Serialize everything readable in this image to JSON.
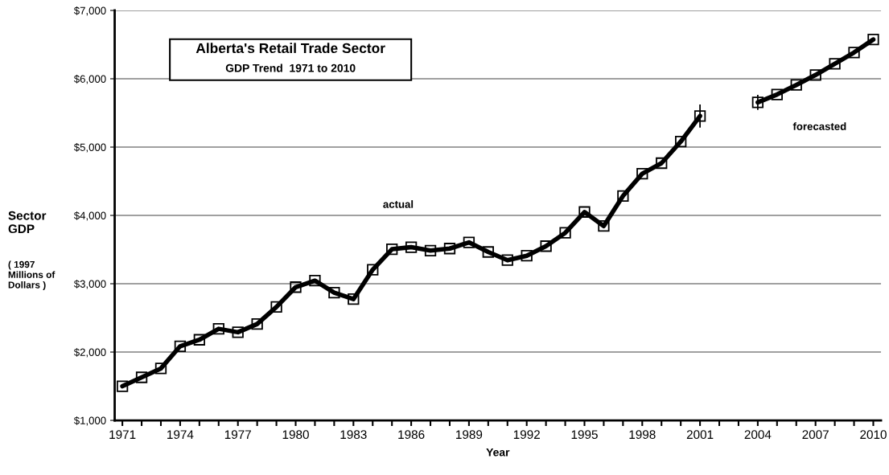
{
  "chart_data": {
    "type": "line",
    "title": "Alberta's Retail Trade Sector",
    "subtitle": "GDP Trend  1971 to 2010",
    "xlabel": "Year",
    "ylabel": "Sector\nGDP",
    "annotations": [
      "( 1997\nMillions of\nDollars )",
      "actual",
      "forecasted"
    ],
    "categories": [
      "1971",
      null,
      null,
      "1974",
      null,
      null,
      "1977",
      null,
      null,
      "1980",
      null,
      null,
      "1983",
      null,
      null,
      "1986",
      null,
      null,
      "1989",
      null,
      null,
      "1992",
      null,
      null,
      "1995",
      null,
      null,
      "1998",
      null,
      null,
      "2001",
      null,
      null,
      "2004",
      null,
      null,
      "2007",
      null,
      null,
      "2010"
    ],
    "series": [
      {
        "color": "#000000",
        "values": [
          1500,
          1630,
          1760,
          2085,
          2180,
          2340,
          2290,
          2410,
          2660,
          2950,
          3045,
          2870,
          2775,
          3205,
          3505,
          3535,
          3485,
          3515,
          3605,
          3465,
          3345,
          3410,
          3550,
          3745,
          4050,
          3845,
          4285,
          4610,
          4765,
          5080,
          5455,
          null,
          null,
          null,
          null,
          null,
          null,
          null,
          null,
          null
        ],
        "errors": [
          null,
          null,
          null,
          null,
          null,
          null,
          null,
          null,
          null,
          null,
          null,
          null,
          null,
          null,
          null,
          null,
          null,
          null,
          null,
          null,
          null,
          null,
          null,
          null,
          null,
          null,
          null,
          null,
          null,
          null,
          170,
          null,
          null,
          null,
          null,
          null,
          null,
          null,
          null,
          null
        ]
      },
      {
        "color": "#000000",
        "values": [
          null,
          null,
          null,
          null,
          null,
          null,
          null,
          null,
          null,
          null,
          null,
          null,
          null,
          null,
          null,
          null,
          null,
          null,
          null,
          null,
          null,
          null,
          null,
          null,
          null,
          null,
          null,
          null,
          null,
          null,
          null,
          null,
          null,
          5655,
          5770,
          5910,
          6055,
          6220,
          6385,
          6575
        ],
        "errors": [
          null,
          null,
          null,
          null,
          null,
          null,
          null,
          null,
          null,
          null,
          null,
          null,
          null,
          null,
          null,
          null,
          null,
          null,
          null,
          null,
          null,
          null,
          null,
          null,
          null,
          null,
          null,
          null,
          null,
          null,
          null,
          null,
          null,
          110,
          null,
          null,
          null,
          null,
          null,
          null
        ]
      }
    ],
    "ylim": [
      1000,
      7000
    ],
    "yticks": [
      {
        "value": 1000,
        "label": "$1,000"
      },
      {
        "value": 2000,
        "label": "$2,000"
      },
      {
        "value": 3000,
        "label": "$3,000"
      },
      {
        "value": 4000,
        "label": "$4,000"
      },
      {
        "value": 5000,
        "label": "$5,000"
      },
      {
        "value": 6000,
        "label": "$6,000"
      },
      {
        "value": 7000,
        "label": "$7,000"
      }
    ],
    "grid": "y",
    "legend": false,
    "marker": "square",
    "line_style": "solid"
  }
}
